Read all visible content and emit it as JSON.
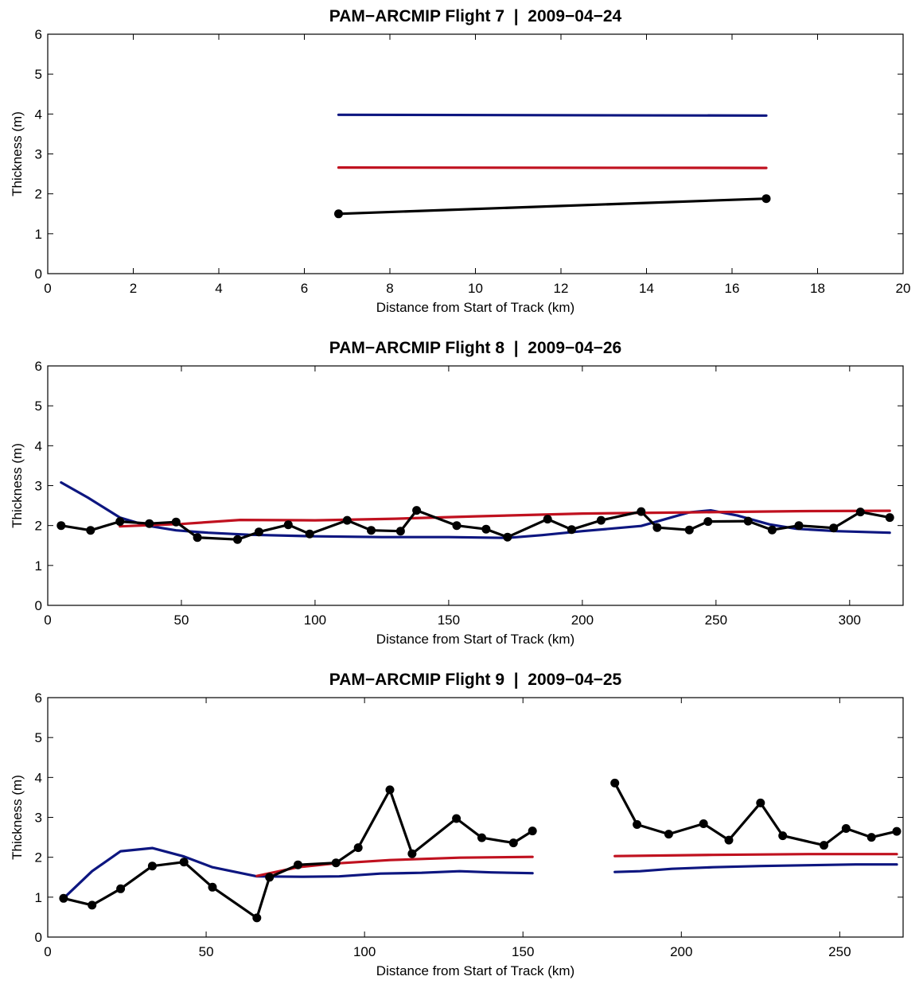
{
  "colors": {
    "measured": "#000000",
    "model_red": "#c0111f",
    "model_blue": "#0d1680"
  },
  "chart_data": [
    {
      "type": "line",
      "title": "PAM−ARCMIP Flight 7  |  2009−04−24",
      "xlabel": "Distance from Start of Track (km)",
      "ylabel": "Thickness (m)",
      "xlim": [
        0,
        20
      ],
      "ylim": [
        0,
        6
      ],
      "xticks": [
        0,
        2,
        4,
        6,
        8,
        10,
        12,
        14,
        16,
        18,
        20
      ],
      "yticks": [
        0,
        1,
        2,
        3,
        4,
        5,
        6
      ],
      "grid": false,
      "series": [
        {
          "color": "#0d1680",
          "markers": false,
          "segments": [
            [
              [
                6.8,
                3.98
              ],
              [
                16.8,
                3.96
              ]
            ]
          ]
        },
        {
          "color": "#c0111f",
          "markers": false,
          "segments": [
            [
              [
                6.8,
                2.66
              ],
              [
                16.8,
                2.65
              ]
            ]
          ]
        },
        {
          "color": "#000000",
          "markers": true,
          "segments": [
            [
              [
                6.8,
                1.5
              ],
              [
                16.8,
                1.88
              ]
            ]
          ]
        }
      ]
    },
    {
      "type": "line",
      "title": "PAM−ARCMIP Flight 8  |  2009−04−26",
      "xlabel": "Distance from Start of Track (km)",
      "ylabel": "Thickness (m)",
      "xlim": [
        0,
        320
      ],
      "ylim": [
        0,
        6
      ],
      "xticks": [
        0,
        50,
        100,
        150,
        200,
        250,
        300
      ],
      "yticks": [
        0,
        1,
        2,
        3,
        4,
        5,
        6
      ],
      "grid": false,
      "series": [
        {
          "color": "#0d1680",
          "markers": false,
          "segments": [
            [
              [
                5,
                3.08
              ],
              [
                15,
                2.7
              ],
              [
                27,
                2.2
              ],
              [
                37,
                2.0
              ],
              [
                48,
                1.88
              ],
              [
                60,
                1.82
              ],
              [
                75,
                1.77
              ],
              [
                100,
                1.73
              ],
              [
                125,
                1.71
              ],
              [
                150,
                1.71
              ],
              [
                172,
                1.69
              ],
              [
                185,
                1.76
              ],
              [
                200,
                1.86
              ],
              [
                222,
                1.99
              ],
              [
                240,
                2.33
              ],
              [
                248,
                2.38
              ],
              [
                258,
                2.25
              ],
              [
                270,
                2.03
              ],
              [
                280,
                1.92
              ],
              [
                295,
                1.86
              ],
              [
                315,
                1.82
              ]
            ]
          ]
        },
        {
          "color": "#c0111f",
          "markers": false,
          "segments": [
            [
              [
                27,
                1.98
              ],
              [
                50,
                2.04
              ],
              [
                72,
                2.14
              ],
              [
                100,
                2.13
              ],
              [
                130,
                2.17
              ],
              [
                160,
                2.23
              ],
              [
                200,
                2.3
              ],
              [
                240,
                2.33
              ],
              [
                280,
                2.36
              ],
              [
                315,
                2.37
              ]
            ]
          ]
        },
        {
          "color": "#000000",
          "markers": true,
          "segments": [
            [
              [
                5,
                2.0
              ],
              [
                16,
                1.88
              ],
              [
                27,
                2.1
              ],
              [
                38,
                2.05
              ],
              [
                48,
                2.09
              ],
              [
                56,
                1.7
              ],
              [
                71,
                1.65
              ],
              [
                79,
                1.84
              ],
              [
                90,
                2.02
              ],
              [
                98,
                1.79
              ],
              [
                112,
                2.13
              ],
              [
                121,
                1.88
              ],
              [
                132,
                1.86
              ],
              [
                138,
                2.38
              ],
              [
                153,
                2.0
              ],
              [
                164,
                1.91
              ],
              [
                172,
                1.71
              ],
              [
                187,
                2.16
              ],
              [
                196,
                1.9
              ],
              [
                207,
                2.13
              ],
              [
                222,
                2.35
              ],
              [
                228,
                1.95
              ],
              [
                240,
                1.89
              ],
              [
                247,
                2.1
              ],
              [
                262,
                2.11
              ],
              [
                271,
                1.89
              ],
              [
                281,
                2.0
              ],
              [
                294,
                1.94
              ],
              [
                304,
                2.34
              ],
              [
                315,
                2.2
              ]
            ]
          ]
        }
      ]
    },
    {
      "type": "line",
      "title": "PAM−ARCMIP Flight 9  |  2009−04−25",
      "xlabel": "Distance from Start of Track (km)",
      "ylabel": "Thickness (m)",
      "xlim": [
        0,
        270
      ],
      "ylim": [
        0,
        6
      ],
      "xticks": [
        0,
        50,
        100,
        150,
        200,
        250
      ],
      "yticks": [
        0,
        1,
        2,
        3,
        4,
        5,
        6
      ],
      "grid": false,
      "series": [
        {
          "color": "#0d1680",
          "markers": false,
          "segments": [
            [
              [
                5,
                0.97
              ],
              [
                14,
                1.65
              ],
              [
                23,
                2.15
              ],
              [
                33,
                2.23
              ],
              [
                43,
                2.02
              ],
              [
                52,
                1.75
              ],
              [
                66,
                1.52
              ],
              [
                80,
                1.51
              ],
              [
                92,
                1.52
              ],
              [
                105,
                1.59
              ],
              [
                118,
                1.61
              ],
              [
                130,
                1.65
              ],
              [
                140,
                1.62
              ],
              [
                153,
                1.6
              ]
            ],
            [
              [
                179,
                1.63
              ],
              [
                187,
                1.65
              ],
              [
                197,
                1.71
              ],
              [
                210,
                1.75
              ],
              [
                225,
                1.78
              ],
              [
                240,
                1.8
              ],
              [
                255,
                1.82
              ],
              [
                268,
                1.82
              ]
            ]
          ]
        },
        {
          "color": "#c0111f",
          "markers": false,
          "segments": [
            [
              [
                66,
                1.53
              ],
              [
                79,
                1.75
              ],
              [
                90,
                1.84
              ],
              [
                108,
                1.93
              ],
              [
                130,
                1.99
              ],
              [
                153,
                2.01
              ]
            ],
            [
              [
                179,
                2.03
              ],
              [
                210,
                2.06
              ],
              [
                240,
                2.08
              ],
              [
                268,
                2.08
              ]
            ]
          ]
        },
        {
          "color": "#000000",
          "markers": true,
          "segments": [
            [
              [
                5,
                0.97
              ],
              [
                14,
                0.8
              ],
              [
                23,
                1.21
              ],
              [
                33,
                1.78
              ],
              [
                43,
                1.88
              ],
              [
                52,
                1.25
              ],
              [
                66,
                0.48
              ],
              [
                70,
                1.5
              ],
              [
                79,
                1.81
              ],
              [
                91,
                1.86
              ],
              [
                98,
                2.24
              ],
              [
                108,
                3.69
              ],
              [
                115,
                2.09
              ],
              [
                129,
                2.97
              ],
              [
                137,
                2.49
              ],
              [
                147,
                2.36
              ],
              [
                153,
                2.66
              ]
            ],
            [
              [
                179,
                3.86
              ],
              [
                186,
                2.82
              ],
              [
                196,
                2.58
              ],
              [
                207,
                2.84
              ],
              [
                215,
                2.43
              ],
              [
                225,
                3.36
              ],
              [
                232,
                2.54
              ],
              [
                245,
                2.3
              ],
              [
                252,
                2.72
              ],
              [
                260,
                2.5
              ],
              [
                268,
                2.65
              ]
            ]
          ]
        }
      ]
    }
  ]
}
